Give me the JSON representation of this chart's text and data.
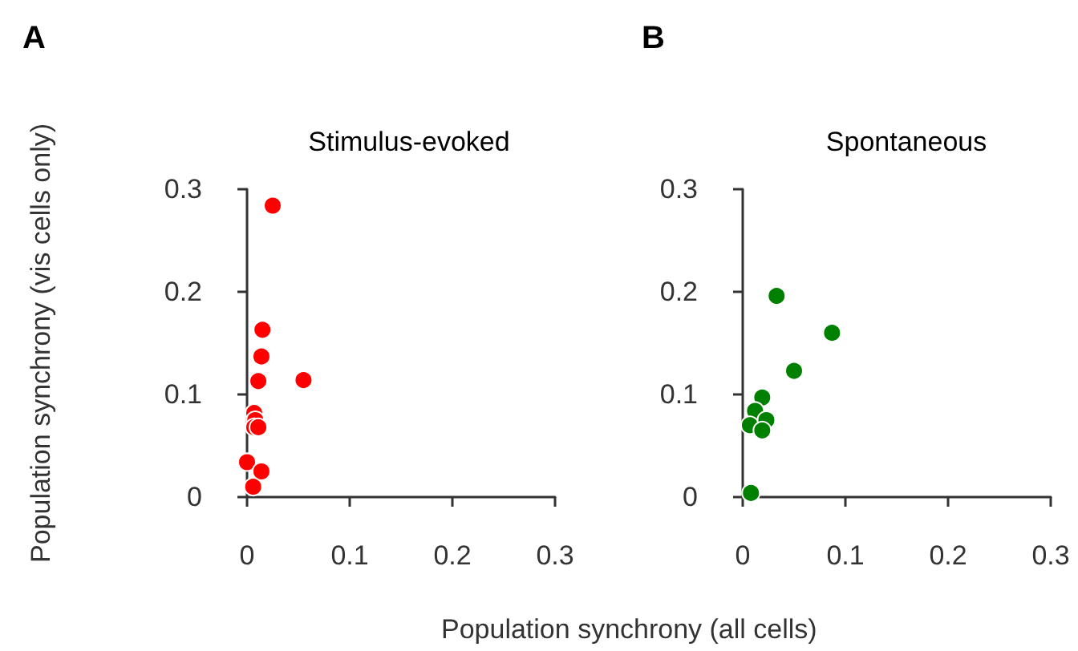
{
  "chart_data": [
    {
      "type": "scatter",
      "title": "Stimulus-evoked",
      "annotations": [
        "A"
      ],
      "xlabel": "Population synchrony (all cells)",
      "ylabel": "Population synchrony (vis cells only)",
      "xlim": [
        0,
        0.3
      ],
      "xticks": [
        0,
        0.1,
        0.2,
        0.3
      ],
      "ylim": [
        0,
        0.3
      ],
      "yticks": [
        0,
        0.1,
        0.2,
        0.3
      ],
      "grid": false,
      "marker": "circle",
      "series": [
        {
          "color": "#ff0000",
          "x": [
            0.025,
            0.015,
            0.014,
            0.011,
            0.055,
            0.007,
            0.008,
            0.007,
            0.011,
            0.0,
            0.014,
            0.006
          ],
          "values": [
            0.284,
            0.163,
            0.137,
            0.113,
            0.114,
            0.082,
            0.075,
            0.068,
            0.068,
            0.034,
            0.025,
            0.01
          ]
        }
      ]
    },
    {
      "type": "scatter",
      "title": "Spontaneous",
      "annotations": [
        "B"
      ],
      "xlim": [
        0,
        0.3
      ],
      "xticks": [
        0,
        0.1,
        0.2,
        0.3
      ],
      "ylim": [
        0,
        0.3
      ],
      "yticks": [
        0,
        0.1,
        0.2,
        0.3
      ],
      "grid": false,
      "marker": "circle",
      "series": [
        {
          "color": "#008000",
          "x": [
            0.033,
            0.087,
            0.05,
            0.019,
            0.012,
            0.007,
            0.023,
            0.019,
            0.008
          ],
          "values": [
            0.196,
            0.16,
            0.123,
            0.097,
            0.084,
            0.07,
            0.075,
            0.065,
            0.004
          ]
        }
      ]
    }
  ]
}
